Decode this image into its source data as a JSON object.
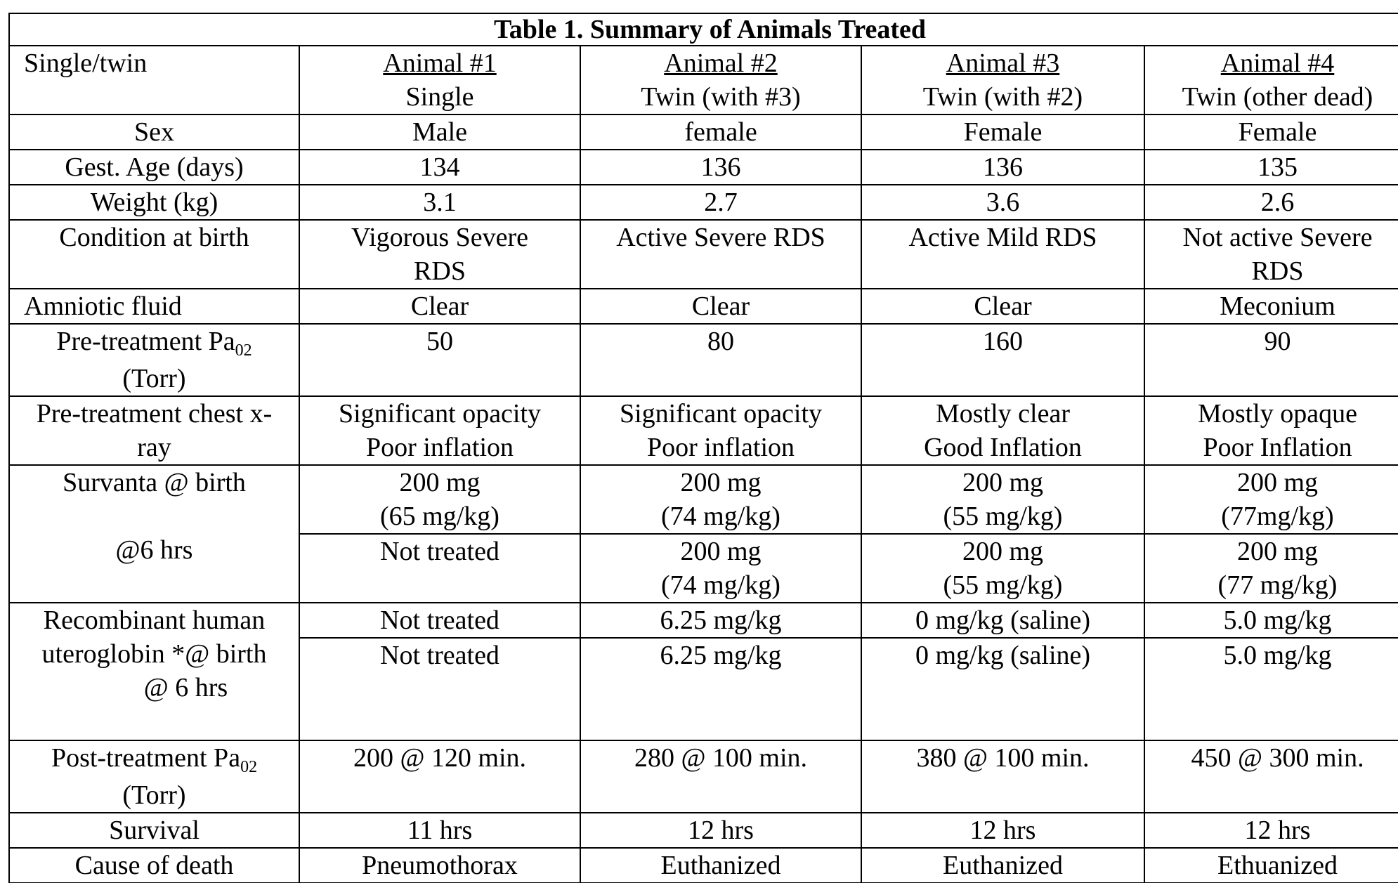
{
  "title": "Table 1.  Summary of Animals Treated",
  "header": {
    "label": "Single/twin",
    "animals": [
      {
        "name": "Animal #1",
        "type": "Single"
      },
      {
        "name": "Animal #2",
        "type": "Twin (with #3)"
      },
      {
        "name": "Animal #3",
        "type": "Twin (with #2)"
      },
      {
        "name": "Animal #4",
        "type": "Twin (other dead)"
      }
    ]
  },
  "rows": {
    "sex": {
      "label": "Sex",
      "values": [
        "Male",
        "female",
        "Female",
        "Female"
      ]
    },
    "gest_age": {
      "label": "Gest. Age (days)",
      "values": [
        "134",
        "136",
        "136",
        "135"
      ]
    },
    "weight": {
      "label": "Weight (kg)",
      "values": [
        "3.1",
        "2.7",
        "3.6",
        "2.6"
      ]
    },
    "condition": {
      "label": "Condition at birth",
      "values": [
        [
          "Vigorous Severe",
          "RDS"
        ],
        [
          "Active Severe RDS",
          ""
        ],
        [
          "Active Mild RDS",
          ""
        ],
        [
          "Not active Severe",
          "RDS"
        ]
      ]
    },
    "amniotic": {
      "label": "Amniotic fluid",
      "values": [
        "Clear",
        "Clear",
        "Clear",
        "Meconium"
      ]
    },
    "pre_pao2": {
      "label_main": "Pre-treatment Pa",
      "label_sub": "02",
      "label_unit": "(Torr)",
      "values": [
        "50",
        "80",
        "160",
        "90"
      ]
    },
    "pre_xray": {
      "label_1": "Pre-treatment chest x-",
      "label_2": "ray",
      "values": [
        [
          "Significant opacity",
          "Poor inflation"
        ],
        [
          "Significant opacity",
          "Poor inflation"
        ],
        [
          "Mostly clear",
          "Good Inflation"
        ],
        [
          "Mostly opaque",
          "Poor Inflation"
        ]
      ]
    },
    "survanta": {
      "label_birth": "Survanta @ birth",
      "label_6h": "@6 hrs",
      "birth": [
        [
          "200 mg",
          "(65 mg/kg)"
        ],
        [
          "200 mg",
          "(74 mg/kg)"
        ],
        [
          "200 mg",
          "(55 mg/kg)"
        ],
        [
          "200 mg",
          "(77mg/kg)"
        ]
      ],
      "six": [
        [
          "Not treated",
          ""
        ],
        [
          "200 mg",
          "(74 mg/kg)"
        ],
        [
          "200 mg",
          "(55 mg/kg)"
        ],
        [
          "200 mg",
          "(77 mg/kg)"
        ]
      ]
    },
    "uteroglobin": {
      "label_1": "Recombinant human",
      "label_2": "uteroglobin *@ birth",
      "label_3": "@ 6 hrs",
      "birth": [
        "Not treated",
        "6.25 mg/kg",
        "0 mg/kg (saline)",
        "5.0 mg/kg"
      ],
      "six": [
        "Not treated",
        "6.25 mg/kg",
        "0 mg/kg (saline)",
        "5.0 mg/kg"
      ]
    },
    "post_pao2": {
      "label_main": "Post-treatment Pa",
      "label_sub": "02",
      "label_unit": "(Torr)",
      "values": [
        "200 @ 120 min.",
        "280 @ 100 min.",
        "380 @ 100 min.",
        "450 @ 300 min."
      ]
    },
    "survival": {
      "label": "Survival",
      "values": [
        "11 hrs",
        "12 hrs",
        "12 hrs",
        "12 hrs"
      ]
    },
    "death": {
      "label": "Cause of death",
      "values": [
        "Pneumothorax",
        "Euthanized",
        "Euthanized",
        "Ethuanized"
      ]
    }
  }
}
